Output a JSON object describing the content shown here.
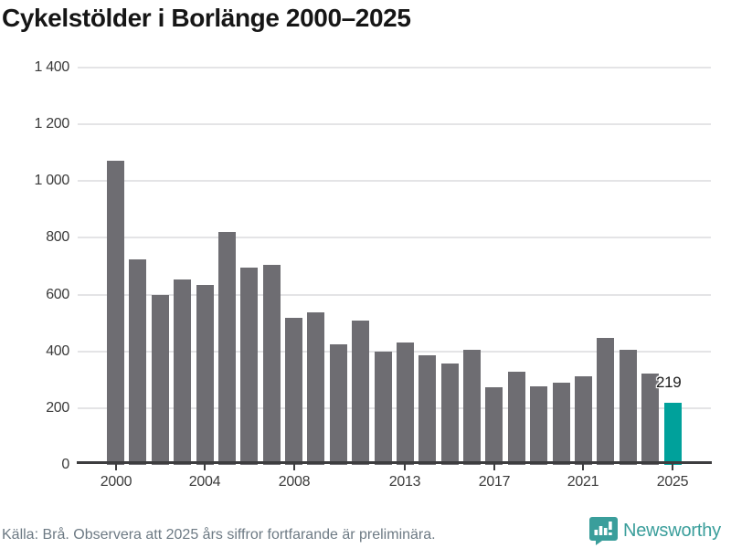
{
  "title": "Cykelstölder i Borlänge 2000–2025",
  "footer": {
    "source_note": "Källa: Brå. Observera att 2025 års siffror fortfarande är preliminära.",
    "brand": "Newsworthy"
  },
  "colors": {
    "bar_gray": "#6E6D72",
    "bar_highlight_teal": "#00A19B",
    "gridline": "#E4E4E6",
    "axis": "#3D3D3F",
    "title_text": "#161616",
    "tick_text": "#3B3B3B",
    "footer_text": "#6D7A84",
    "brand_teal": "#3A9E9B"
  },
  "chart_data": {
    "type": "bar",
    "title": "Cykelstölder i Borlänge 2000–2025",
    "xlabel": "",
    "ylabel": "",
    "categories": [
      2000,
      2001,
      2002,
      2003,
      2004,
      2005,
      2006,
      2007,
      2008,
      2009,
      2010,
      2011,
      2012,
      2013,
      2014,
      2015,
      2016,
      2017,
      2018,
      2019,
      2020,
      2021,
      2022,
      2023,
      2024,
      2025
    ],
    "values": [
      1072,
      724,
      600,
      654,
      635,
      820,
      694,
      706,
      519,
      536,
      426,
      510,
      400,
      431,
      387,
      356,
      405,
      274,
      328,
      277,
      289,
      313,
      448,
      407,
      322,
      219
    ],
    "highlight": {
      "year": 2025,
      "value": 219,
      "label": "219"
    },
    "ylim": [
      0,
      1400
    ],
    "ytick_values": [
      0,
      200,
      400,
      600,
      800,
      1000,
      1200,
      1400
    ],
    "ytick_labels": [
      "0",
      "200",
      "400",
      "600",
      "800",
      "1 000",
      "1 200",
      "1 400"
    ],
    "xtick_years": [
      2000,
      2004,
      2008,
      2013,
      2017,
      2021,
      2025
    ],
    "grid": true,
    "legend_position": "none"
  }
}
